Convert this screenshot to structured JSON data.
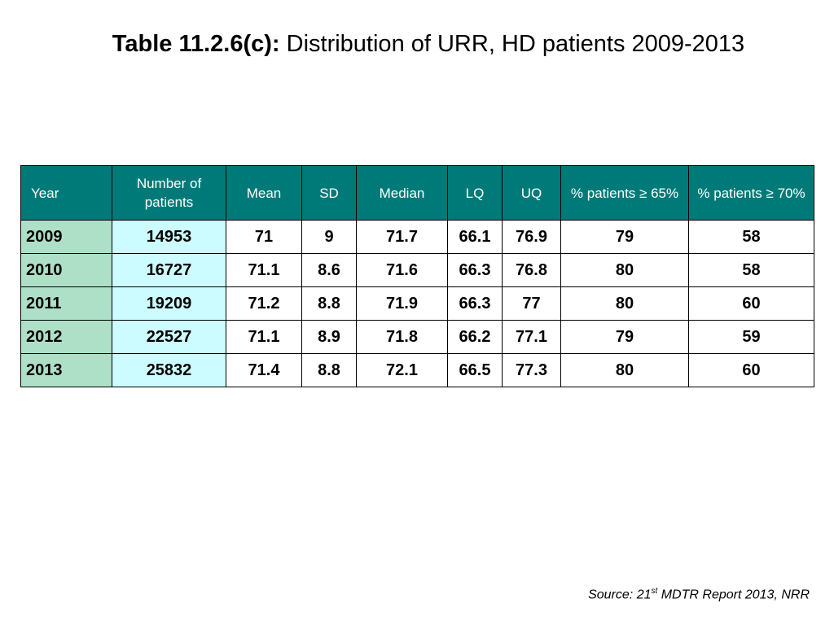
{
  "title": {
    "label": "Table 11.2.6(c):",
    "text": " Distribution of URR, HD patients 2009-2013"
  },
  "table": {
    "headers": [
      "Year",
      "Number of patients",
      "Mean",
      "SD",
      "Median",
      "LQ",
      "UQ",
      "% patients ≥ 65%",
      "% patients ≥ 70%"
    ],
    "rows": [
      [
        "2009",
        "14953",
        "71",
        "9",
        "71.7",
        "66.1",
        "76.9",
        "79",
        "58"
      ],
      [
        "2010",
        "16727",
        "71.1",
        "8.6",
        "71.6",
        "66.3",
        "76.8",
        "80",
        "58"
      ],
      [
        "2011",
        "19209",
        "71.2",
        "8.8",
        "71.9",
        "66.3",
        "77",
        "80",
        "60"
      ],
      [
        "2012",
        "22527",
        "71.1",
        "8.9",
        "71.8",
        "66.2",
        "77.1",
        "79",
        "59"
      ],
      [
        "2013",
        "25832",
        "71.4",
        "8.8",
        "72.1",
        "66.5",
        "77.3",
        "80",
        "60"
      ]
    ]
  },
  "source": {
    "prefix": "Source: 21",
    "sup": "st",
    "suffix": " MDTR Report 2013, NRR"
  },
  "colors": {
    "header_bg": "#007a78",
    "year_bg": "#aee0c8",
    "patients_bg": "#ccfcff"
  }
}
